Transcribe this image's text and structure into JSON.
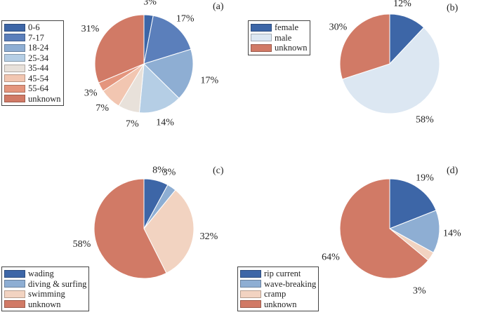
{
  "colors": {
    "navy": "#3d66a7",
    "blue": "#5b7fbb",
    "mid_blue": "#8eaed3",
    "light_blue": "#b5cee5",
    "very_light_blue": "#dce7f2",
    "pale": "#e8e1da",
    "light_salmon": "#f2c6b1",
    "salmon": "#e4957d",
    "terracotta": "#d17a66"
  },
  "chart_data": [
    {
      "id": "a",
      "type": "pie",
      "title": "(a)",
      "legend_position": "left",
      "categories": [
        "0-6",
        "7-17",
        "18-24",
        "25-34",
        "35-44",
        "45-54",
        "55-64",
        "unknown"
      ],
      "values": [
        3,
        17,
        17,
        14,
        7,
        7,
        3,
        31
      ],
      "value_labels": [
        "3%",
        "17%",
        "17%",
        "14%",
        "7%",
        "7%",
        "3%",
        "31%"
      ],
      "colors": [
        "#3d66a7",
        "#5b7fbb",
        "#8eaed3",
        "#b5cee5",
        "#e8e1da",
        "#f2c6b1",
        "#e4957d",
        "#d17a66"
      ]
    },
    {
      "id": "b",
      "type": "pie",
      "title": "(b)",
      "legend_position": "top-left",
      "categories": [
        "female",
        "male",
        "unknown"
      ],
      "values": [
        12,
        58,
        30
      ],
      "value_labels": [
        "12%",
        "58%",
        "30%"
      ],
      "colors": [
        "#3d66a7",
        "#dce7f2",
        "#d17a66"
      ]
    },
    {
      "id": "c",
      "type": "pie",
      "title": "(c)",
      "legend_position": "bottom-left",
      "categories": [
        "wading",
        "diving & surfing",
        "swimming",
        "unknown"
      ],
      "values": [
        8,
        3,
        32,
        58
      ],
      "value_labels": [
        "8%",
        "3%",
        "32%",
        "58%"
      ],
      "colors": [
        "#3d66a7",
        "#8eaed3",
        "#f2d3c1",
        "#d17a66"
      ]
    },
    {
      "id": "d",
      "type": "pie",
      "title": "(d)",
      "legend_position": "bottom-left",
      "categories": [
        "rip current",
        "wave-breaking",
        "cramp",
        "unknown"
      ],
      "values": [
        19,
        14,
        3,
        64
      ],
      "value_labels": [
        "19%",
        "14%",
        "3%",
        "64%"
      ],
      "colors": [
        "#3d66a7",
        "#8eaed3",
        "#f2d3c1",
        "#d17a66"
      ]
    }
  ]
}
